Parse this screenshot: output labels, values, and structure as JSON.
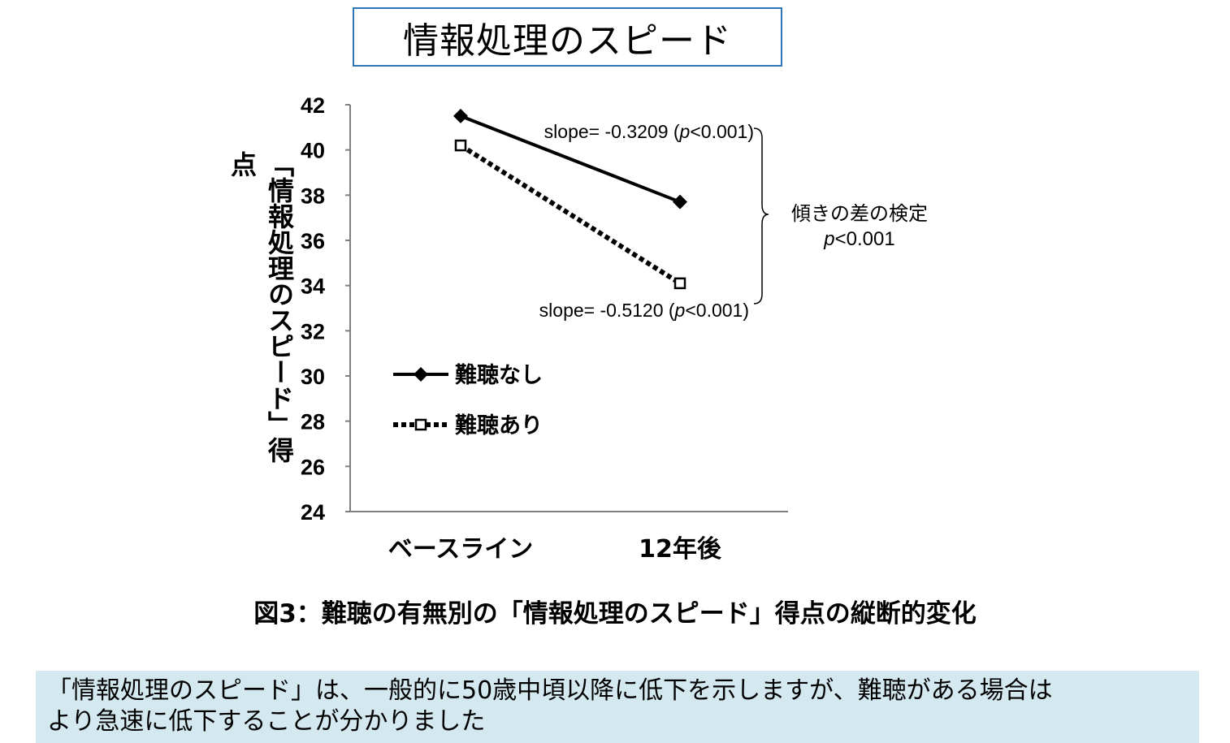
{
  "title": "情報処理のスピード",
  "caption": "図3：難聴の有無別の「情報処理のスピード」得点の縦断的変化",
  "note": {
    "line1": "「情報処理のスピード」は、一般的に50歳中頃以降に低下を示しますが、難聴がある場合は",
    "line2": "より急速に低下することが分かりました"
  },
  "colors": {
    "title_border": "#2e75b6",
    "note_background": "#d4e8f0",
    "axis": "#808080",
    "series": "#000000"
  },
  "chart_data": {
    "type": "line",
    "ylabel": "「情報処理のスピード」得点",
    "xlabel": "",
    "ylim": [
      24,
      42
    ],
    "yticks": [
      "24",
      "26",
      "28",
      "30",
      "32",
      "34",
      "36",
      "38",
      "40",
      "42"
    ],
    "categories": [
      "ベースライン",
      "12年後"
    ],
    "grid": false,
    "legend_position": "lower-left",
    "series": [
      {
        "name": "難聴なし",
        "values": [
          41.5,
          37.7
        ],
        "style": "solid",
        "marker": "diamond",
        "slope_label": {
          "prefix": "slope= -0.3209 (",
          "p": "p",
          "suffix": "<0.001)"
        }
      },
      {
        "name": "難聴あり",
        "values": [
          40.2,
          34.1
        ],
        "style": "dotted",
        "marker": "open-square",
        "slope_label": {
          "prefix": "slope= -0.5120 (",
          "p": "p",
          "suffix": "<0.001)"
        }
      }
    ],
    "annotation": {
      "text": "傾きの差の検定",
      "p": "p",
      "value": "<0.001"
    }
  }
}
